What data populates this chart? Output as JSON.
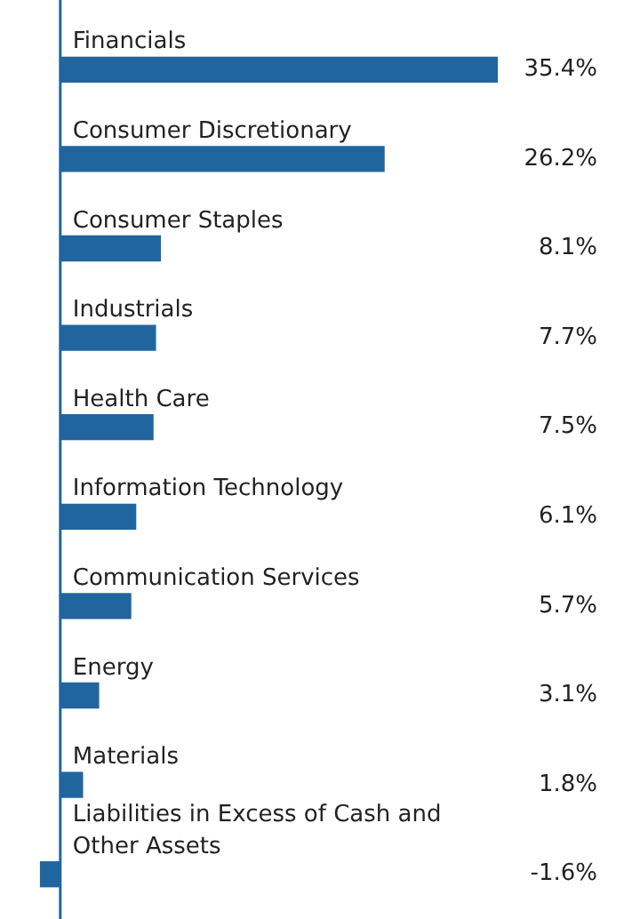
{
  "chart_data": {
    "type": "bar",
    "orientation": "horizontal",
    "categories": [
      "Financials",
      "Consumer Discretionary",
      "Consumer Staples",
      "Industrials",
      "Health Care",
      "Information Technology",
      "Communication Services",
      "Energy",
      "Materials",
      "Liabilities in Excess of Cash and Other Assets"
    ],
    "values": [
      35.4,
      26.2,
      8.1,
      7.7,
      7.5,
      6.1,
      5.7,
      3.1,
      1.8,
      -1.6
    ],
    "value_labels": [
      "35.4%",
      "26.2%",
      "8.1%",
      "7.7%",
      "7.5%",
      "6.1%",
      "5.7%",
      "3.1%",
      "1.8%",
      "-1.6%"
    ],
    "color": "#21659f",
    "xlim": [
      -2,
      35.4
    ],
    "tick_labels": "y"
  }
}
